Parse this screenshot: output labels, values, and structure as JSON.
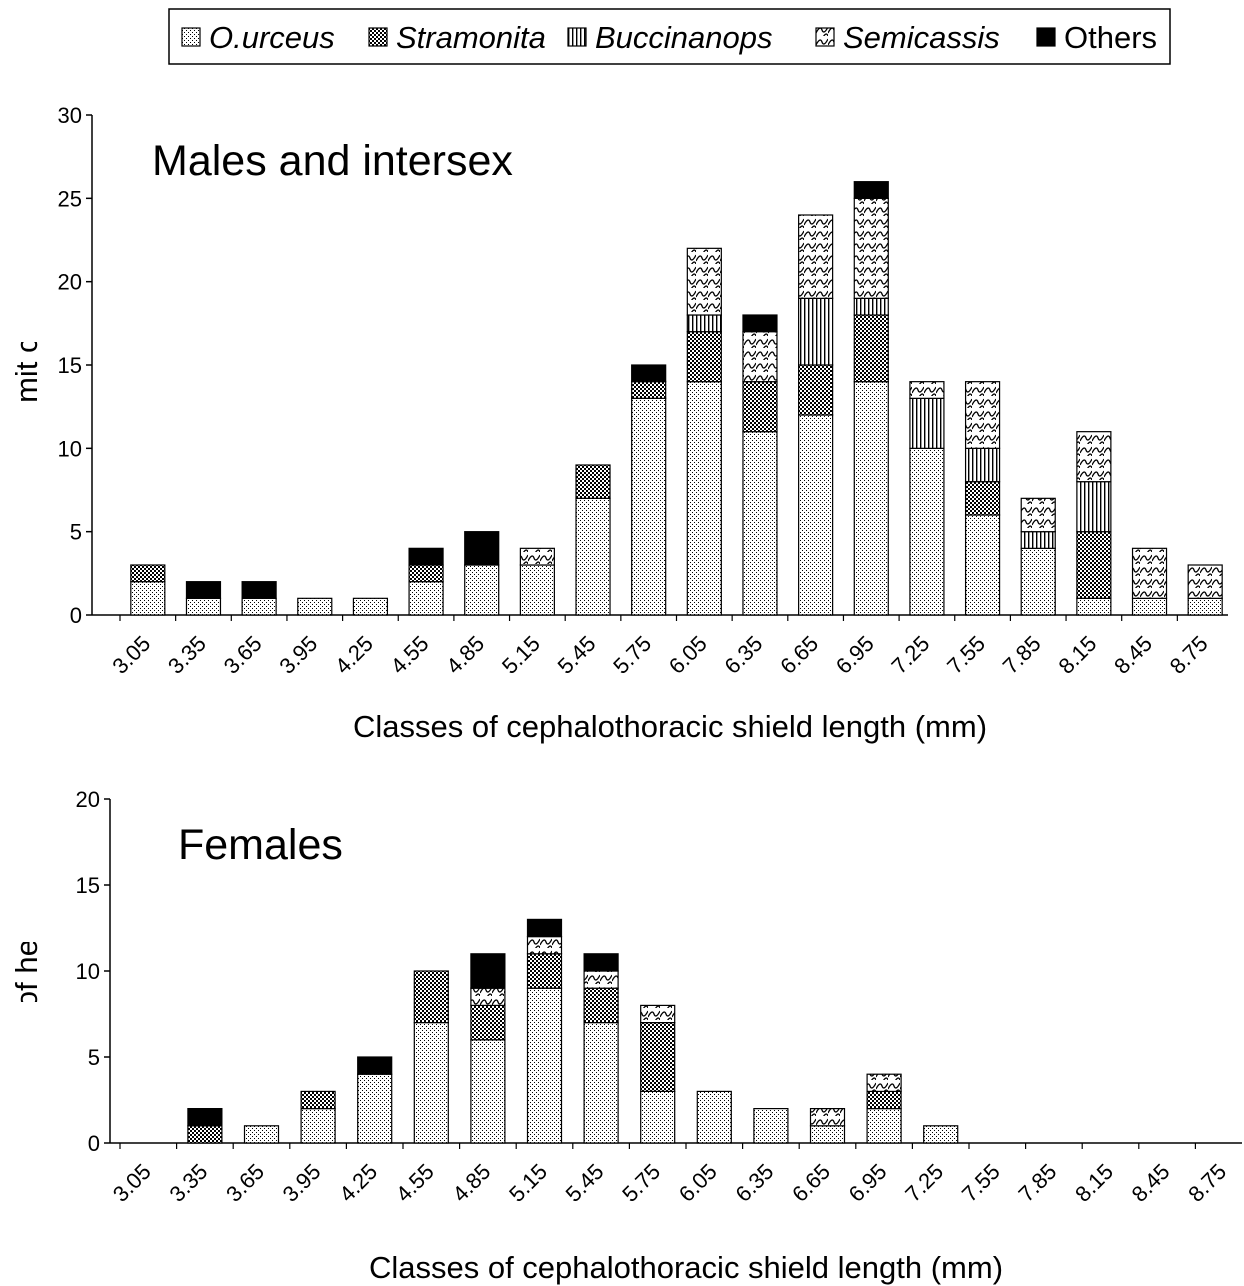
{
  "legend": {
    "items": [
      {
        "label": "O.urceus",
        "pattern": "dots",
        "italic": true
      },
      {
        "label": "Stramonita",
        "pattern": "checker",
        "italic": true
      },
      {
        "label": "Buccinanops",
        "pattern": "vlines",
        "italic": true
      },
      {
        "label": "Semicassis",
        "pattern": "waves",
        "italic": true
      },
      {
        "label": "Others",
        "pattern": "solid",
        "italic": false
      }
    ]
  },
  "colors": {
    "fill_solid": "#000000",
    "pattern_background": "#ffffff",
    "outline": "#000000"
  },
  "chart_data": [
    {
      "type": "bar",
      "stacked": true,
      "title": "Males and intersex",
      "xlabel": "Classes of cephalothoracic shield length (mm)",
      "ylabel": "Number of hermit crabs and shells",
      "ylim": [
        0,
        30
      ],
      "yticks": [
        0,
        5,
        10,
        15,
        20,
        25,
        30
      ],
      "grid": false,
      "legend_position": "top",
      "categories": [
        "3.05",
        "3.35",
        "3.65",
        "3.95",
        "4.25",
        "4.55",
        "4.85",
        "5.15",
        "5.45",
        "5.75",
        "6.05",
        "6.35",
        "6.65",
        "6.95",
        "7.25",
        "7.55",
        "7.85",
        "8.15",
        "8.45",
        "8.75"
      ],
      "series": [
        {
          "name": "O.urceus",
          "values": [
            2,
            1,
            1,
            1,
            1,
            2,
            3,
            3,
            7,
            13,
            14,
            11,
            12,
            14,
            10,
            6,
            4,
            1,
            1,
            1
          ]
        },
        {
          "name": "Stramonita",
          "values": [
            1,
            0,
            0,
            0,
            0,
            1,
            0,
            0,
            2,
            1,
            3,
            3,
            3,
            4,
            0,
            2,
            0,
            4,
            0,
            0
          ]
        },
        {
          "name": "Buccinanops",
          "values": [
            0,
            0,
            0,
            0,
            0,
            0,
            0,
            0,
            0,
            0,
            1,
            0,
            4,
            1,
            3,
            2,
            1,
            3,
            0,
            0
          ]
        },
        {
          "name": "Semicassis",
          "values": [
            0,
            0,
            0,
            0,
            0,
            0,
            0,
            1,
            0,
            0,
            4,
            3,
            5,
            6,
            1,
            4,
            2,
            3,
            3,
            2
          ]
        },
        {
          "name": "Others",
          "values": [
            0,
            1,
            1,
            0,
            0,
            1,
            2,
            0,
            0,
            1,
            0,
            1,
            0,
            1,
            0,
            0,
            0,
            0,
            0,
            0
          ]
        }
      ]
    },
    {
      "type": "bar",
      "stacked": true,
      "title": "Females",
      "xlabel": "Classes of cephalothoracic shield length (mm)",
      "ylabel": "Number of hermit crabs",
      "ylim": [
        0,
        20
      ],
      "yticks": [
        0,
        5,
        10,
        15,
        20
      ],
      "grid": false,
      "categories": [
        "3.05",
        "3.35",
        "3.65",
        "3.95",
        "4.25",
        "4.55",
        "4.85",
        "5.15",
        "5.45",
        "5.75",
        "6.05",
        "6.35",
        "6.65",
        "6.95",
        "7.25",
        "7.55",
        "7.85",
        "8.15",
        "8.45",
        "8.75"
      ],
      "series": [
        {
          "name": "O.urceus",
          "values": [
            0,
            0,
            1,
            2,
            4,
            7,
            6,
            9,
            7,
            3,
            3,
            2,
            1,
            2,
            1,
            0,
            0,
            0,
            0,
            0
          ]
        },
        {
          "name": "Stramonita",
          "values": [
            0,
            1,
            0,
            1,
            0,
            3,
            2,
            2,
            2,
            4,
            0,
            0,
            0,
            1,
            0,
            0,
            0,
            0,
            0,
            0
          ]
        },
        {
          "name": "Buccinanops",
          "values": [
            0,
            0,
            0,
            0,
            0,
            0,
            0,
            0,
            0,
            0,
            0,
            0,
            0,
            0,
            0,
            0,
            0,
            0,
            0,
            0
          ]
        },
        {
          "name": "Semicassis",
          "values": [
            0,
            0,
            0,
            0,
            0,
            0,
            1,
            1,
            1,
            1,
            0,
            0,
            1,
            1,
            0,
            0,
            0,
            0,
            0,
            0
          ]
        },
        {
          "name": "Others",
          "values": [
            0,
            1,
            0,
            0,
            1,
            0,
            2,
            1,
            1,
            0,
            0,
            0,
            0,
            0,
            0,
            0,
            0,
            0,
            0,
            0
          ]
        }
      ]
    }
  ]
}
